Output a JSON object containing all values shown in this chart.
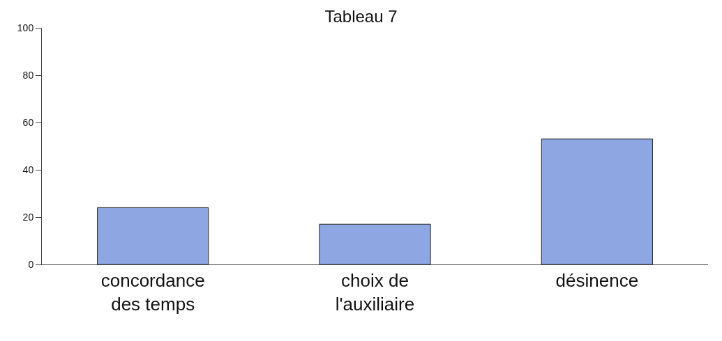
{
  "chart_data": {
    "type": "bar",
    "title": "Tableau 7",
    "categories": [
      "concordance\ndes temps",
      "choix de\nl'auxiliaire",
      "désinence"
    ],
    "values": [
      24,
      17,
      53
    ],
    "color": "#8ea6e2",
    "ylim": [
      0,
      100
    ],
    "yticks": [
      0,
      20,
      40,
      60,
      80,
      100
    ],
    "grid": false,
    "legend": false
  }
}
